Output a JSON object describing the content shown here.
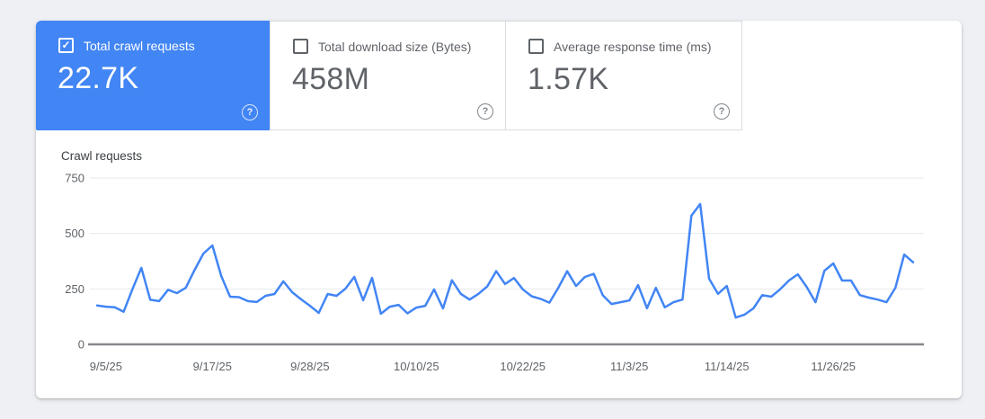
{
  "metrics": {
    "selected_color": "#4285f4",
    "check_icon": "✓",
    "help_icon": "?",
    "cards": [
      {
        "label": "Total crawl requests",
        "value": "22.7K",
        "checked": true,
        "selected": true
      },
      {
        "label": "Total download size (Bytes)",
        "value": "458M",
        "checked": false,
        "selected": false
      },
      {
        "label": "Average response time (ms)",
        "value": "1.57K",
        "checked": false,
        "selected": false
      }
    ]
  },
  "chart_data": {
    "type": "line",
    "title": "Crawl requests",
    "xlabel": "",
    "ylabel": "",
    "ylim": [
      0,
      750
    ],
    "y_ticks": [
      0,
      250,
      500,
      750
    ],
    "grid": "horizontal",
    "legend": "none",
    "line_color": "#4285f4",
    "axis_color": "#85898d",
    "grid_color": "#e8eaed",
    "start_date": "9/4/25",
    "frequency": "daily",
    "x_tick_labels": [
      "9/5/25",
      "9/17/25",
      "9/28/25",
      "10/10/25",
      "10/22/25",
      "11/3/25",
      "11/14/25",
      "11/26/25"
    ],
    "x_tick_day_indices": [
      1,
      13,
      24,
      36,
      48,
      60,
      71,
      83
    ],
    "values": [
      175,
      170,
      167,
      147,
      250,
      345,
      201,
      195,
      246,
      231,
      255,
      336,
      410,
      446,
      308,
      215,
      213,
      195,
      191,
      219,
      227,
      284,
      235,
      203,
      174,
      142,
      227,
      219,
      251,
      304,
      199,
      300,
      138,
      170,
      178,
      140,
      166,
      174,
      248,
      162,
      289,
      228,
      202,
      228,
      262,
      330,
      272,
      299,
      248,
      217,
      205,
      188,
      255,
      330,
      263,
      304,
      318,
      222,
      182,
      190,
      198,
      267,
      163,
      255,
      167,
      190,
      202,
      580,
      633,
      296,
      228,
      263,
      121,
      134,
      162,
      222,
      215,
      248,
      288,
      316,
      259,
      190,
      332,
      365,
      288,
      288,
      222,
      211,
      202,
      190,
      255,
      405,
      370
    ]
  }
}
